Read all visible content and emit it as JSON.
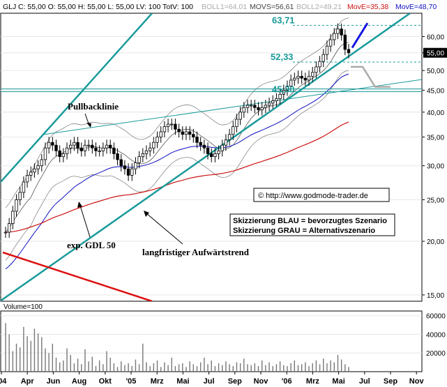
{
  "header": {
    "symbol": "GLJ",
    "stats": "C: 55,00 O: 55,00 H: 55,00 L: 55,00 LV: 100 TotV: 100",
    "boll1": "BOLL1=64,01",
    "movs": "MOVS=56,61",
    "boll2": "BOLL2=49,21",
    "move_red": "MovE=35,38",
    "move_blue": "MovE=48,70"
  },
  "colors": {
    "candle": "#000000",
    "boll": "#888888",
    "movs": "#555555",
    "ema_blue": "#1010c0",
    "ema_red": "#cc1111",
    "trend": "#1a9a9a",
    "teal_text": "#1a9a9a",
    "scenario_blue": "#1515e0",
    "scenario_gray": "#aaaaaa",
    "volume": "#777777"
  },
  "chart_data": {
    "type": "candlestick",
    "y_scale": "log",
    "ylim": [
      14.5,
      68
    ],
    "y_ticks": [
      15,
      20,
      25,
      30,
      35,
      40,
      45,
      50,
      55,
      60
    ],
    "x_ticks": [
      "'04",
      "Apr",
      "Jun",
      "Aug",
      "Okt",
      "'05",
      "Mrz",
      "Mai",
      "Jul",
      "Sep",
      "Nov",
      "'06",
      "Mrz",
      "Mai",
      "Jul",
      "Sep",
      "Nov"
    ],
    "last_price": "55,00",
    "levels": [
      {
        "label": "63,71",
        "value": 63.71
      },
      {
        "label": "52,33",
        "value": 52.33
      },
      {
        "label": "45,30",
        "value": 45.3
      }
    ],
    "price_weekly": [
      21,
      22,
      23.5,
      25,
      26,
      27.5,
      28.5,
      29,
      29.5,
      30,
      31,
      33,
      34,
      33.5,
      32.5,
      31.5,
      32,
      33,
      33.5,
      34,
      33,
      32.5,
      33.5,
      33.5,
      33,
      32.5,
      32.5,
      33,
      33.5,
      33,
      32,
      31,
      30,
      29.5,
      28.5,
      29.5,
      30.5,
      31.5,
      32,
      32.5,
      33,
      34,
      35,
      36,
      37,
      37.5,
      37.5,
      36.5,
      36,
      35.5,
      36,
      35.5,
      35,
      34,
      33.5,
      33,
      32,
      31.5,
      32,
      32.5,
      33.5,
      34.5,
      35.5,
      37,
      38.5,
      40,
      41,
      41.5,
      41.5,
      41,
      40.5,
      41,
      41.5,
      42,
      42.5,
      43,
      44,
      45,
      46,
      47.5,
      48,
      48.5,
      48,
      47.5,
      48.5,
      49.5,
      51,
      52.5,
      54.5,
      57,
      59,
      61,
      62.5,
      60.5,
      56,
      55
    ],
    "volume": {
      "ylim": [
        0,
        65000
      ],
      "y_ticks": [
        20000,
        40000,
        60000
      ],
      "label": "Volume=100",
      "weekly": [
        52000,
        40000,
        22000,
        30000,
        26000,
        48000,
        38000,
        33000,
        46000,
        41000,
        37000,
        25000,
        20000,
        30000,
        15000,
        10000,
        12000,
        25000,
        18000,
        9000,
        14000,
        8000,
        24000,
        11000,
        16000,
        6000,
        12000,
        8000,
        22000,
        15000,
        9000,
        5000,
        11000,
        7000,
        9000,
        6000,
        13000,
        8000,
        30000,
        10000,
        6000,
        9000,
        12000,
        5000,
        10000,
        7000,
        15000,
        6000,
        8000,
        9000,
        5000,
        11000,
        8000,
        6000,
        10000,
        15000,
        8000,
        12000,
        6000,
        9000,
        7000,
        11000,
        8000,
        6000,
        10000,
        9000,
        14000,
        8000,
        7000,
        9000,
        6000,
        12000,
        7000,
        10000,
        6000,
        8000,
        11000,
        7000,
        6000,
        9000,
        12000,
        7000,
        8000,
        10000,
        6000,
        9000,
        12000,
        8000,
        14000,
        9000,
        12000,
        10000,
        18000,
        13000,
        8000,
        5000
      ]
    }
  },
  "annotations": {
    "pullback": "Pullbacklinie",
    "gdl": "exp. GDL 50",
    "trend": "langfristiger Aufwärtstrend",
    "copyright": "© http://www.godmode-trader.de",
    "scenario_blue": "Skizzierung BLAU = bevorzugtes Szenario",
    "scenario_gray": "Skizzierung GRAU = Alternativszenario"
  }
}
